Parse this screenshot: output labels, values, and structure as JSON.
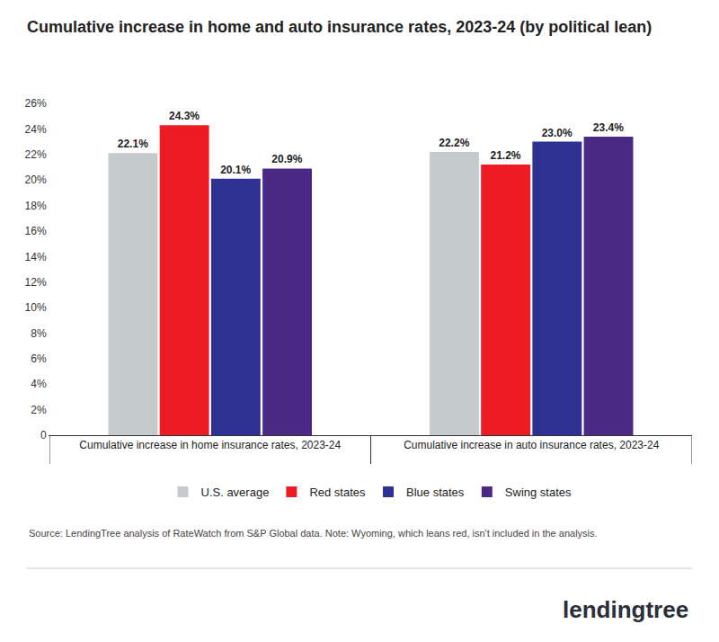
{
  "chart_data": {
    "type": "bar",
    "title": "Cumulative increase in home and auto insurance rates, 2023-24 (by political lean)",
    "categories": [
      "Cumulative increase in home insurance rates, 2023-24",
      "Cumulative increase in auto insurance rates, 2023-24"
    ],
    "series": [
      {
        "name": "U.S. average",
        "color": "#c5cacc",
        "values": [
          22.1,
          22.2
        ],
        "value_labels": [
          "22.1%",
          "22.2%"
        ]
      },
      {
        "name": "Red states",
        "color": "#ed1c24",
        "values": [
          24.3,
          21.2
        ],
        "value_labels": [
          "24.3%",
          "21.2%"
        ]
      },
      {
        "name": "Blue states",
        "color": "#2e3192",
        "values": [
          20.1,
          23.0
        ],
        "value_labels": [
          "20.1%",
          "23.0%"
        ]
      },
      {
        "name": "Swing states",
        "color": "#4b2a85",
        "values": [
          20.9,
          23.4
        ],
        "value_labels": [
          "20.9%",
          "23.4%"
        ]
      }
    ],
    "ylim": [
      0,
      26
    ],
    "yticks": [
      0,
      {
        "value": 2,
        "label": "2%"
      },
      {
        "value": 4,
        "label": "4%"
      },
      {
        "value": 6,
        "label": "6%"
      },
      {
        "value": 8,
        "label": "8%"
      },
      {
        "value": 10,
        "label": "10%"
      },
      {
        "value": 12,
        "label": "12%"
      },
      {
        "value": 14,
        "label": "14%"
      },
      {
        "value": 16,
        "label": "16%"
      },
      {
        "value": 18,
        "label": "18%"
      },
      {
        "value": 20,
        "label": "20%"
      },
      {
        "value": 22,
        "label": "22%"
      },
      {
        "value": 24,
        "label": "24%"
      },
      {
        "value": 26,
        "label": "26%"
      }
    ],
    "grid": false,
    "legend": "bottom",
    "data_labels": true,
    "source": "Source: LendingTree analysis of RateWatch from S&P Global data. Note: Wyoming, which leans red, isn't included in the analysis.",
    "logo": "lendingtree"
  }
}
